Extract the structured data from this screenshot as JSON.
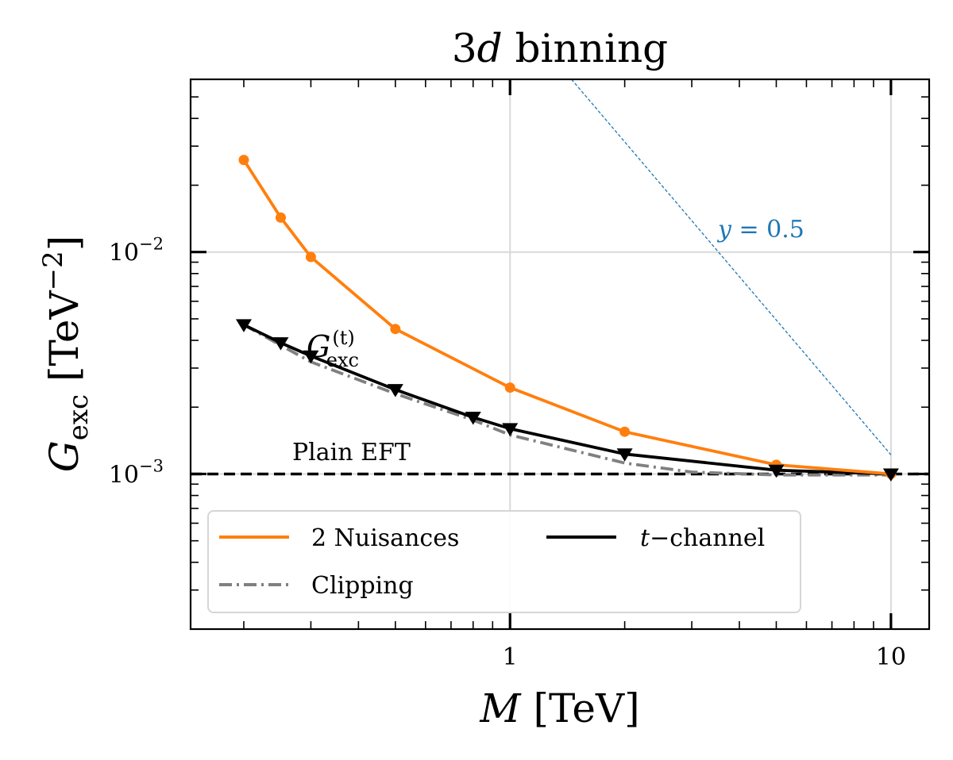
{
  "chart_data": {
    "type": "line",
    "title_num": "3",
    "title_var": "d",
    "title_rest": " binning",
    "xlabel_var": "M",
    "xlabel_unit": " [TeV]",
    "ylabel_main": "G",
    "ylabel_sub": "exc",
    "ylabel_unit": " [TeV",
    "ylabel_exp": "−2",
    "ylabel_close": "]",
    "xscale": "log",
    "yscale": "log",
    "xlim": [
      0.145,
      12.6
    ],
    "ylim": [
      0.0002,
      0.06
    ],
    "grid": true,
    "x_ticks": [
      {
        "value": 1,
        "label": "1"
      },
      {
        "value": 10,
        "label": "10"
      }
    ],
    "y_ticks": [
      {
        "value": 0.001,
        "base": "10",
        "exp": "−3"
      },
      {
        "value": 0.01,
        "base": "10",
        "exp": "−2"
      }
    ],
    "series": [
      {
        "name": "2 Nuisances",
        "color": "#ff7f0e",
        "style": "solid",
        "marker": "circle",
        "x": [
          0.2,
          0.25,
          0.3,
          0.5,
          1.0,
          2.0,
          5.0,
          10.0
        ],
        "y": [
          0.026,
          0.0143,
          0.0095,
          0.0045,
          0.00245,
          0.00155,
          0.0011,
          0.001
        ]
      },
      {
        "name": "Clipping",
        "color": "#808080",
        "style": "dashdot",
        "marker": "none",
        "x": [
          0.2,
          0.25,
          0.3,
          0.5,
          0.8,
          1.0,
          2.0,
          3.0,
          5.0,
          10.0
        ],
        "y": [
          0.0047,
          0.0038,
          0.0032,
          0.0023,
          0.00175,
          0.0015,
          0.00112,
          0.00102,
          0.00099,
          0.00099
        ]
      },
      {
        "name": "t−channel",
        "name_var": "t",
        "name_rest": "−channel",
        "color": "#000000",
        "style": "solid",
        "marker": "triangle-down",
        "x": [
          0.2,
          0.25,
          0.3,
          0.5,
          0.8,
          1.0,
          2.0,
          5.0,
          10.0
        ],
        "y": [
          0.0047,
          0.0039,
          0.0034,
          0.0024,
          0.0018,
          0.0016,
          0.00123,
          0.00104,
          0.001
        ]
      }
    ],
    "reference_lines": [
      {
        "name": "Plain EFT",
        "color": "#000000",
        "style": "dashed",
        "y": 0.001
      },
      {
        "name": "y = 0.5",
        "color": "#1f77b4",
        "style": "dashed-thin",
        "x": [
          1.45,
          10.0
        ],
        "y": [
          0.06,
          0.00122
        ]
      }
    ],
    "annotations": {
      "gexc_main": "G",
      "gexc_sup": "(t)",
      "gexc_sub": "exc",
      "plain_eft": "Plain EFT",
      "yhalf_var": "y",
      "yhalf_rest": " = 0.5"
    },
    "legend": {
      "placement": "lower-left",
      "columns": 2
    }
  }
}
